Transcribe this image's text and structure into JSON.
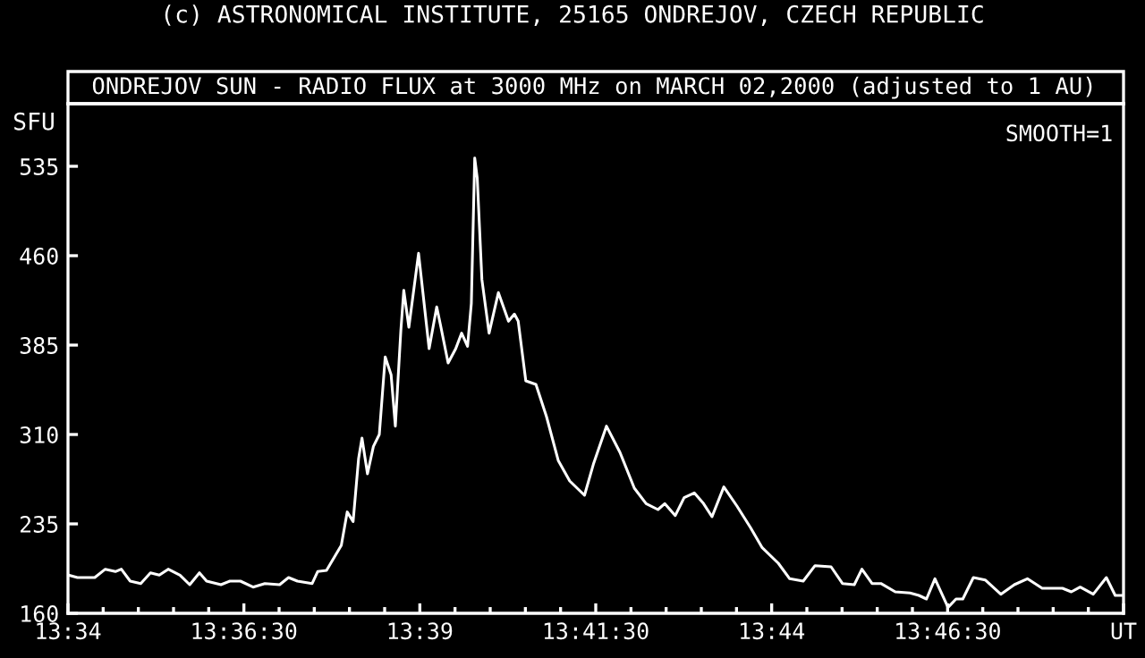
{
  "chart_data": {
    "type": "line",
    "title": "(c) ASTRONOMICAL INSTITUTE, 25165 ONDREJOV, CZECH REPUBLIC",
    "subtitle": "ONDREJOV SUN - RADIO FLUX at 3000 MHz on MARCH 02,2000 (adjusted to 1 AU)",
    "ylabel": "SFU",
    "annotations": [
      "SMOOTH=1"
    ],
    "series": [
      {
        "color": "#ffffff",
        "x": [
          13.5668,
          13.5689,
          13.573,
          13.5755,
          13.5779,
          13.5793,
          13.5814,
          13.5839,
          13.5862,
          13.5883,
          13.5904,
          13.5932,
          13.5955,
          13.5978,
          13.5995,
          13.6029,
          13.605,
          13.6075,
          13.6105,
          13.6133,
          13.6168,
          13.6189,
          13.621,
          13.6245,
          13.6258,
          13.6279,
          13.6314,
          13.6328,
          13.6342,
          13.6355,
          13.6363,
          13.6376,
          13.639,
          13.6404,
          13.6418,
          13.6432,
          13.6442,
          13.6455,
          13.6462,
          13.6474,
          13.6497,
          13.6522,
          13.654,
          13.655,
          13.6567,
          13.6585,
          13.6599,
          13.6613,
          13.6622,
          13.663,
          13.6636,
          13.6647,
          13.6664,
          13.6686,
          13.671,
          13.6724,
          13.6733,
          13.6751,
          13.6775,
          13.68,
          13.6828,
          13.6855,
          13.689,
          13.6911,
          13.6942,
          13.6974,
          13.7008,
          13.7036,
          13.7064,
          13.708,
          13.7105,
          13.7126,
          13.715,
          13.7172,
          13.7192,
          13.722,
          13.7251,
          13.7283,
          13.7311,
          13.7349,
          13.7376,
          13.7408,
          13.7436,
          13.7474,
          13.7501,
          13.7529,
          13.7547,
          13.7571,
          13.7592,
          13.7626,
          13.7661,
          13.7682,
          13.77,
          13.772,
          13.7751,
          13.777,
          13.7786,
          13.7811,
          13.7839,
          13.7876,
          13.7908,
          13.7939,
          13.7974,
          13.8022,
          13.8043,
          13.8064,
          13.8095,
          13.8126,
          13.8147,
          13.8166
        ],
        "values": [
          192,
          190,
          190,
          197,
          195,
          197,
          187,
          185,
          194,
          192,
          197,
          192,
          184,
          194,
          187,
          184,
          187,
          187,
          182,
          185,
          184,
          190,
          187,
          185,
          195,
          196,
          217,
          245,
          237,
          290,
          307,
          277,
          300,
          310,
          375,
          360,
          317,
          397,
          431,
          400,
          462,
          382,
          417,
          400,
          370,
          382,
          395,
          384,
          420,
          542,
          525,
          440,
          395,
          429,
          405,
          411,
          405,
          355,
          352,
          325,
          288,
          271,
          259,
          285,
          317,
          295,
          265,
          252,
          247,
          252,
          242,
          257,
          261,
          252,
          241,
          266,
          250,
          232,
          215,
          202,
          189,
          187,
          200,
          199,
          185,
          184,
          197,
          185,
          185,
          178,
          177,
          175,
          172,
          189,
          165,
          172,
          172,
          190,
          188,
          176,
          184,
          189,
          181,
          181,
          178,
          182,
          176,
          190,
          175,
          175
        ]
      }
    ],
    "xlim": [
      13.566667,
      13.816667
    ],
    "xticks": [
      {
        "value": 13.566667,
        "label": "13:34"
      },
      {
        "value": 13.575,
        "label": null
      },
      {
        "value": 13.583333,
        "label": null
      },
      {
        "value": 13.591667,
        "label": null
      },
      {
        "value": 13.6,
        "label": null
      },
      {
        "value": 13.608333,
        "label": "13:36:30"
      },
      {
        "value": 13.616667,
        "label": null
      },
      {
        "value": 13.625,
        "label": null
      },
      {
        "value": 13.633333,
        "label": null
      },
      {
        "value": 13.641667,
        "label": null
      },
      {
        "value": 13.65,
        "label": "13:39"
      },
      {
        "value": 13.658333,
        "label": null
      },
      {
        "value": 13.666667,
        "label": null
      },
      {
        "value": 13.675,
        "label": null
      },
      {
        "value": 13.683333,
        "label": null
      },
      {
        "value": 13.691667,
        "label": "13:41:30"
      },
      {
        "value": 13.7,
        "label": null
      },
      {
        "value": 13.708333,
        "label": null
      },
      {
        "value": 13.716667,
        "label": null
      },
      {
        "value": 13.725,
        "label": null
      },
      {
        "value": 13.733333,
        "label": "13:44"
      },
      {
        "value": 13.741667,
        "label": null
      },
      {
        "value": 13.75,
        "label": null
      },
      {
        "value": 13.758333,
        "label": null
      },
      {
        "value": 13.766667,
        "label": null
      },
      {
        "value": 13.775,
        "label": "13:46:30"
      },
      {
        "value": 13.783333,
        "label": null
      },
      {
        "value": 13.791667,
        "label": null
      },
      {
        "value": 13.8,
        "label": null
      },
      {
        "value": 13.808333,
        "label": null
      },
      {
        "value": 13.816667,
        "label": "UT"
      }
    ],
    "ylim": [
      160,
      587.5
    ],
    "yticks": [
      160,
      235,
      310,
      385,
      460,
      535
    ],
    "grid": false,
    "legend": false,
    "marker": "none",
    "line_style": "solid"
  }
}
